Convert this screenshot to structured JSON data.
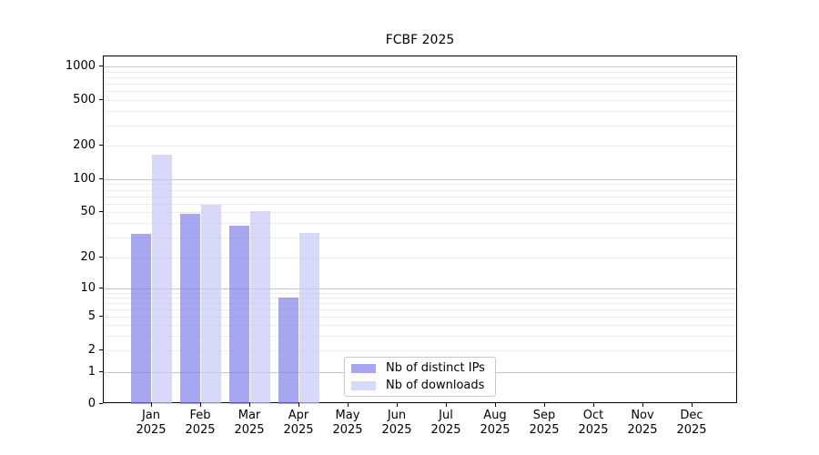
{
  "title": "FCBF 2025",
  "chart_data": {
    "type": "bar",
    "title": "FCBF 2025",
    "x_categories": [
      "Jan 2025",
      "Feb 2025",
      "Mar 2025",
      "Apr 2025",
      "May 2025",
      "Jun 2025",
      "Jul 2025",
      "Aug 2025",
      "Sep 2025",
      "Oct 2025",
      "Nov 2025",
      "Dec 2025"
    ],
    "series": [
      {
        "name": "Nb of distinct IPs",
        "color": "rgba(128,128,235,0.7)",
        "values": [
          32,
          48,
          38,
          8,
          null,
          null,
          null,
          null,
          null,
          null,
          null,
          null
        ]
      },
      {
        "name": "Nb of downloads",
        "color": "rgba(199,199,245,0.7)",
        "values": [
          165,
          58,
          51,
          33,
          null,
          null,
          null,
          null,
          null,
          null,
          null,
          null
        ]
      }
    ],
    "y_scale": "log-like",
    "ylim": [
      0,
      1000
    ],
    "y_ticks": [
      0,
      1,
      2,
      5,
      10,
      20,
      50,
      100,
      200,
      500,
      1000
    ],
    "y_major_gridlines": [
      1,
      10,
      100,
      1000
    ],
    "y_minor_gridlines": [
      2,
      3,
      4,
      5,
      6,
      7,
      8,
      9,
      20,
      30,
      40,
      50,
      60,
      70,
      80,
      90,
      200,
      300,
      400,
      500,
      600,
      700,
      800,
      900
    ],
    "grid": true,
    "legend_position": "lower center"
  }
}
